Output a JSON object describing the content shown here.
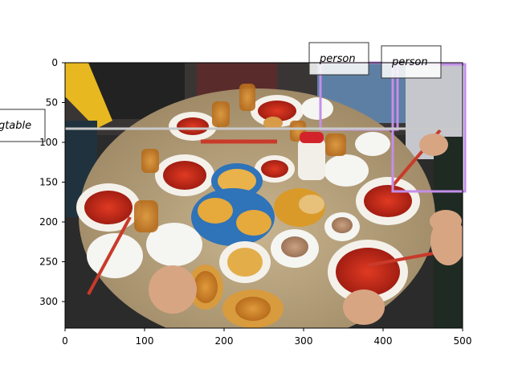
{
  "axes": {
    "x_ticks": [
      "0",
      "100",
      "200",
      "300",
      "400",
      "500"
    ],
    "y_ticks": [
      "0",
      "50",
      "100",
      "150",
      "200",
      "250",
      "300"
    ],
    "x_range": [
      0,
      500
    ],
    "y_range": [
      0,
      333
    ]
  },
  "scene": {
    "tablecloth_color": "#b59e7c",
    "background_color": "#2b2b2b"
  },
  "detections": [
    {
      "label": "person",
      "color": "#c48ee8"
    },
    {
      "label": "person",
      "color": "#c48ee8"
    },
    {
      "label": "diningtable",
      "color": "#c9c9c9"
    }
  ]
}
